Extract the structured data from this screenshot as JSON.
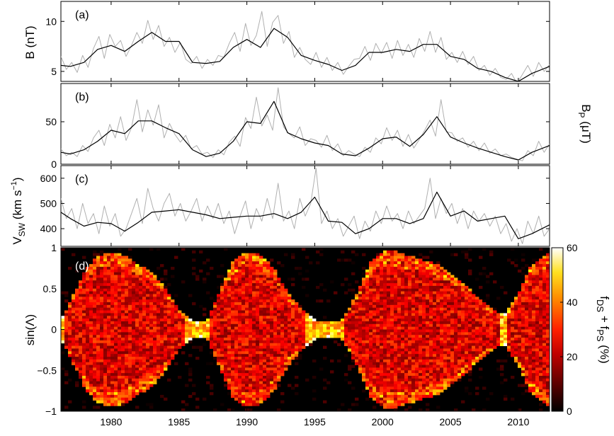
{
  "figure": {
    "x_ticks": [
      "1980",
      "1985",
      "1990",
      "1995",
      "2000",
      "2005",
      "2010"
    ],
    "colorbar": {
      "label_main": "f",
      "label_sub1": "DS",
      "label_plus": " + f",
      "label_sub2": "PS",
      "label_unit": " (%)",
      "ticks": [
        "0",
        "20",
        "40",
        "60"
      ],
      "range": [
        0,
        60
      ]
    }
  },
  "chart_data": [
    {
      "type": "line",
      "panel": "(a)",
      "ylabel": "B (nT)",
      "xlim": [
        1976.3,
        2012.3
      ],
      "ylim": [
        4,
        12
      ],
      "yticks": [
        5,
        10
      ],
      "series": [
        {
          "style": "annual (black)",
          "x": [
            1976.3,
            1977,
            1978,
            1979,
            1980,
            1981,
            1982,
            1983,
            1984,
            1985,
            1986,
            1987,
            1988,
            1989,
            1990,
            1991,
            1992,
            1993,
            1994,
            1995,
            1996,
            1997,
            1998,
            1999,
            2000,
            2001,
            2002,
            2003,
            2004,
            2005,
            2006,
            2007,
            2008,
            2009,
            2010,
            2011,
            2012.3
          ],
          "y": [
            5.6,
            5.5,
            5.9,
            7.2,
            7.6,
            7.0,
            8.0,
            8.9,
            8.0,
            8.0,
            5.9,
            5.8,
            6.0,
            7.4,
            8.2,
            7.4,
            9.3,
            8.4,
            6.6,
            6.1,
            5.7,
            5.1,
            5.6,
            6.9,
            6.9,
            7.2,
            7.0,
            7.7,
            7.7,
            6.5,
            6.2,
            5.3,
            5.0,
            4.4,
            4.0,
            4.8,
            5.5
          ]
        },
        {
          "style": "monthly (grey)",
          "x": [
            1976.3,
            1976.7,
            1977.1,
            1977.5,
            1977.9,
            1978.3,
            1978.7,
            1979.1,
            1979.5,
            1979.9,
            1980.3,
            1980.7,
            1981.1,
            1981.5,
            1981.9,
            1982.3,
            1982.7,
            1983.1,
            1983.5,
            1983.9,
            1984.3,
            1984.7,
            1985.1,
            1985.5,
            1985.9,
            1986.3,
            1986.7,
            1987.1,
            1987.5,
            1987.9,
            1988.3,
            1988.7,
            1989.1,
            1989.5,
            1989.9,
            1990.3,
            1990.7,
            1991.1,
            1991.5,
            1991.9,
            1992.3,
            1992.7,
            1993.1,
            1993.5,
            1993.9,
            1994.3,
            1994.7,
            1995.1,
            1995.5,
            1995.9,
            1996.3,
            1996.7,
            1997.1,
            1997.5,
            1997.9,
            1998.3,
            1998.7,
            1999.1,
            1999.5,
            1999.9,
            2000.3,
            2000.7,
            2001.1,
            2001.5,
            2001.9,
            2002.3,
            2002.7,
            2003.1,
            2003.5,
            2003.9,
            2004.3,
            2004.7,
            2005.1,
            2005.5,
            2005.9,
            2006.3,
            2006.7,
            2007.1,
            2007.5,
            2007.9,
            2008.3,
            2008.7,
            2009.1,
            2009.5,
            2009.9,
            2010.3,
            2010.7,
            2011.1,
            2011.5,
            2011.9,
            2012.3
          ],
          "y": [
            6.5,
            5.2,
            5.9,
            4.9,
            6.6,
            5.4,
            7.3,
            8.5,
            6.3,
            8.7,
            7.5,
            8.1,
            6.5,
            7.6,
            8.9,
            7.8,
            10.1,
            8.2,
            9.6,
            7.5,
            8.4,
            6.9,
            7.9,
            6.2,
            5.8,
            6.5,
            5.3,
            6.2,
            5.6,
            6.6,
            6.4,
            7.8,
            8.9,
            7.0,
            9.8,
            7.6,
            8.6,
            11.0,
            7.5,
            9.9,
            10.6,
            7.8,
            9.0,
            6.4,
            7.4,
            6.2,
            5.7,
            6.9,
            5.4,
            6.4,
            5.1,
            5.9,
            4.7,
            5.5,
            6.2,
            6.3,
            7.5,
            6.1,
            7.8,
            6.8,
            7.9,
            6.3,
            8.1,
            6.6,
            7.7,
            6.4,
            8.3,
            7.0,
            9.0,
            6.9,
            8.4,
            6.2,
            6.9,
            5.9,
            7.0,
            5.7,
            6.5,
            5.1,
            5.6,
            4.6,
            5.3,
            4.4,
            4.2,
            4.8,
            3.8,
            4.7,
            5.6,
            4.5,
            5.9,
            5.0,
            5.7
          ]
        }
      ]
    },
    {
      "type": "line",
      "panel": "(b)",
      "ylabel": "B",
      "ylabel_sub": "P",
      "ylabel_unit": " (μT)",
      "xlim": [
        1976.3,
        2012.3
      ],
      "ylim": [
        0,
        95
      ],
      "yticks": [
        0,
        50
      ],
      "series": [
        {
          "style": "annual (black)",
          "x": [
            1976.3,
            1977,
            1978,
            1979,
            1980,
            1981,
            1982,
            1983,
            1984,
            1985,
            1986,
            1987,
            1988,
            1989,
            1990,
            1991,
            1992,
            1993,
            1994,
            1995,
            1996,
            1997,
            1998,
            1999,
            2000,
            2001,
            2002,
            2003,
            2004,
            2005,
            2006,
            2007,
            2008,
            2009,
            2010,
            2011,
            2012.3
          ],
          "y": [
            14,
            12,
            17,
            27,
            40,
            36,
            51,
            51,
            43,
            36,
            17,
            9,
            13,
            27,
            50,
            48,
            74,
            37,
            30,
            25,
            22,
            12,
            10,
            19,
            30,
            32,
            21,
            35,
            56,
            32,
            25,
            19,
            14,
            9,
            5,
            14,
            22
          ]
        },
        {
          "style": "monthly (grey)",
          "x": [
            1976.3,
            1976.7,
            1977.1,
            1977.5,
            1977.9,
            1978.3,
            1978.7,
            1979.1,
            1979.5,
            1979.9,
            1980.3,
            1980.7,
            1981.1,
            1981.5,
            1981.9,
            1982.3,
            1982.7,
            1983.1,
            1983.5,
            1983.9,
            1984.3,
            1984.7,
            1985.1,
            1985.5,
            1985.9,
            1986.3,
            1986.7,
            1987.1,
            1987.5,
            1987.9,
            1988.3,
            1988.7,
            1989.1,
            1989.5,
            1989.9,
            1990.3,
            1990.7,
            1991.1,
            1991.5,
            1991.9,
            1992.3,
            1992.7,
            1993.1,
            1993.5,
            1993.9,
            1994.3,
            1994.7,
            1995.1,
            1995.5,
            1995.9,
            1996.3,
            1996.7,
            1997.1,
            1997.5,
            1997.9,
            1998.3,
            1998.7,
            1999.1,
            1999.5,
            1999.9,
            2000.3,
            2000.7,
            2001.1,
            2001.5,
            2001.9,
            2002.3,
            2002.7,
            2003.1,
            2003.5,
            2003.9,
            2004.3,
            2004.7,
            2005.1,
            2005.5,
            2005.9,
            2006.3,
            2006.7,
            2007.1,
            2007.5,
            2007.9,
            2008.3,
            2008.7,
            2009.1,
            2009.5,
            2009.9,
            2010.3,
            2010.7,
            2011.1,
            2011.5,
            2011.9,
            2012.3
          ],
          "y": [
            18,
            10,
            14,
            9,
            22,
            15,
            31,
            40,
            22,
            47,
            31,
            56,
            28,
            43,
            76,
            38,
            64,
            46,
            70,
            31,
            48,
            35,
            26,
            34,
            18,
            22,
            12,
            14,
            8,
            17,
            11,
            26,
            33,
            21,
            55,
            42,
            79,
            45,
            58,
            40,
            90,
            44,
            36,
            31,
            44,
            22,
            30,
            28,
            20,
            34,
            16,
            24,
            10,
            16,
            12,
            9,
            20,
            14,
            31,
            24,
            43,
            28,
            40,
            21,
            35,
            19,
            29,
            40,
            52,
            33,
            76,
            38,
            37,
            27,
            31,
            20,
            27,
            16,
            25,
            13,
            18,
            10,
            12,
            8,
            6,
            4,
            16,
            10,
            27,
            14,
            24
          ]
        }
      ]
    },
    {
      "type": "line",
      "panel": "(c)",
      "ylabel": "V",
      "ylabel_sub": "SW",
      "ylabel_unit": " (km s",
      "ylabel_sup": "−1",
      "ylabel_close": ")",
      "xlim": [
        1976.3,
        2012.3
      ],
      "ylim": [
        330,
        650
      ],
      "yticks": [
        400,
        500,
        600
      ],
      "series": [
        {
          "style": "annual (black)",
          "x": [
            1976.3,
            1977,
            1978,
            1979,
            1980,
            1981,
            1982,
            1983,
            1984,
            1985,
            1986,
            1987,
            1988,
            1989,
            1990,
            1991,
            1992,
            1993,
            1994,
            1995,
            1996,
            1997,
            1998,
            1999,
            2000,
            2001,
            2002,
            2003,
            2004,
            2005,
            2006,
            2007,
            2008,
            2009,
            2010,
            2011,
            2012.3
          ],
          "y": [
            465,
            440,
            410,
            425,
            420,
            390,
            425,
            465,
            470,
            475,
            465,
            455,
            440,
            445,
            450,
            450,
            460,
            440,
            465,
            525,
            430,
            425,
            380,
            400,
            440,
            440,
            420,
            440,
            545,
            450,
            470,
            430,
            440,
            450,
            360,
            380,
            415
          ]
        },
        {
          "style": "monthly (grey)",
          "x": [
            1976.3,
            1976.7,
            1977.1,
            1977.5,
            1977.9,
            1978.3,
            1978.7,
            1979.1,
            1979.5,
            1979.9,
            1980.3,
            1980.7,
            1981.1,
            1981.5,
            1981.9,
            1982.3,
            1982.7,
            1983.1,
            1983.5,
            1983.9,
            1984.3,
            1984.7,
            1985.1,
            1985.5,
            1985.9,
            1986.3,
            1986.7,
            1987.1,
            1987.5,
            1987.9,
            1988.3,
            1988.7,
            1989.1,
            1989.5,
            1989.9,
            1990.3,
            1990.7,
            1991.1,
            1991.5,
            1991.9,
            1992.3,
            1992.7,
            1993.1,
            1993.5,
            1993.9,
            1994.3,
            1994.7,
            1995.1,
            1995.5,
            1995.9,
            1996.3,
            1996.7,
            1997.1,
            1997.5,
            1997.9,
            1998.3,
            1998.7,
            1999.1,
            1999.5,
            1999.9,
            2000.3,
            2000.7,
            2001.1,
            2001.5,
            2001.9,
            2002.3,
            2002.7,
            2003.1,
            2003.5,
            2003.9,
            2004.3,
            2004.7,
            2005.1,
            2005.5,
            2005.9,
            2006.3,
            2006.7,
            2007.1,
            2007.5,
            2007.9,
            2008.3,
            2008.7,
            2009.1,
            2009.5,
            2009.9,
            2010.3,
            2010.7,
            2011.1,
            2011.5,
            2011.9,
            2012.3
          ],
          "y": [
            520,
            440,
            480,
            400,
            500,
            420,
            460,
            380,
            490,
            410,
            460,
            370,
            400,
            460,
            520,
            420,
            560,
            480,
            430,
            500,
            540,
            450,
            500,
            430,
            470,
            520,
            430,
            490,
            440,
            500,
            420,
            470,
            380,
            450,
            510,
            400,
            480,
            430,
            520,
            440,
            580,
            430,
            470,
            400,
            520,
            450,
            500,
            640,
            420,
            470,
            400,
            440,
            370,
            410,
            450,
            360,
            430,
            390,
            470,
            420,
            490,
            430,
            460,
            400,
            470,
            420,
            450,
            480,
            600,
            440,
            520,
            460,
            500,
            420,
            480,
            400,
            470,
            430,
            460,
            410,
            450,
            380,
            420,
            350,
            400,
            340,
            430,
            380,
            450,
            370,
            400
          ]
        }
      ]
    },
    {
      "type": "heatmap",
      "panel": "(d)",
      "ylabel": "sin(Λ)",
      "xlim": [
        1976.3,
        2012.3
      ],
      "ylim": [
        -1,
        1
      ],
      "yticks": [
        "−1",
        "−0.5",
        "0",
        "0.5",
        "1"
      ],
      "value_range_percent": [
        0,
        60
      ],
      "colormap": "hot (black-red-yellow-white)",
      "band_halfwidth_annual": {
        "x": [
          1976.3,
          1977,
          1978,
          1979,
          1980,
          1981,
          1982,
          1983,
          1984,
          1985,
          1986,
          1987,
          1988,
          1989,
          1990,
          1991,
          1992,
          1993,
          1994,
          1995,
          1996,
          1997,
          1998,
          1999,
          2000,
          2001,
          2002,
          2003,
          2004,
          2005,
          2006,
          2007,
          2008,
          2009,
          2010,
          2011,
          2012.3
        ],
        "y": [
          0.12,
          0.35,
          0.7,
          0.9,
          0.95,
          0.9,
          0.8,
          0.7,
          0.5,
          0.25,
          0.1,
          0.1,
          0.45,
          0.85,
          0.95,
          0.92,
          0.75,
          0.45,
          0.25,
          0.12,
          0.1,
          0.12,
          0.4,
          0.8,
          0.95,
          0.95,
          0.9,
          0.85,
          0.8,
          0.7,
          0.55,
          0.4,
          0.25,
          0.18,
          0.45,
          0.8,
          0.95
        ]
      }
    }
  ]
}
